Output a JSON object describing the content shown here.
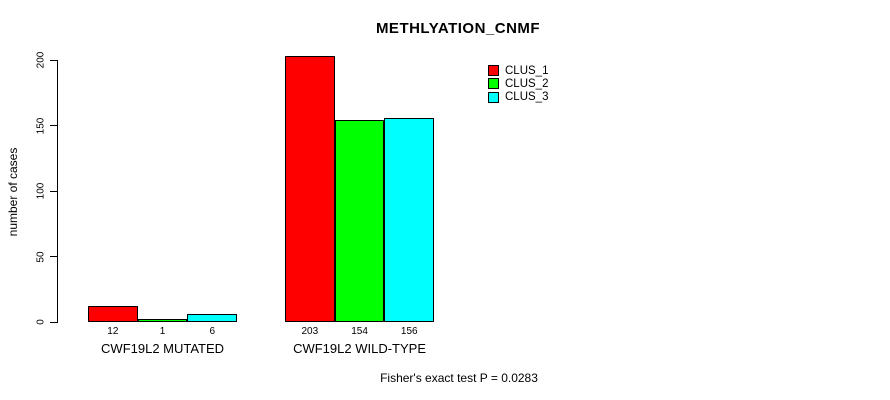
{
  "chart_data": {
    "type": "bar",
    "title": "METHLYATION_CNMF",
    "ylabel": "number of cases",
    "ylim": [
      0,
      200
    ],
    "yticks": [
      0,
      50,
      100,
      150,
      200
    ],
    "grid": false,
    "legend_position": "top-right",
    "categories": [
      "CWF19L2 MUTATED",
      "CWF19L2 WILD-TYPE"
    ],
    "series": [
      {
        "name": "CLUS_1",
        "color": "#ff0000",
        "values": [
          12,
          203
        ]
      },
      {
        "name": "CLUS_2",
        "color": "#00ff00",
        "values": [
          1,
          154
        ]
      },
      {
        "name": "CLUS_3",
        "color": "#00ffff",
        "values": [
          6,
          156
        ]
      }
    ],
    "bar_value_labels": [
      [
        12,
        1,
        6
      ],
      [
        203,
        154,
        156
      ]
    ],
    "annotation": "Fisher's exact test P = 0.0283"
  }
}
